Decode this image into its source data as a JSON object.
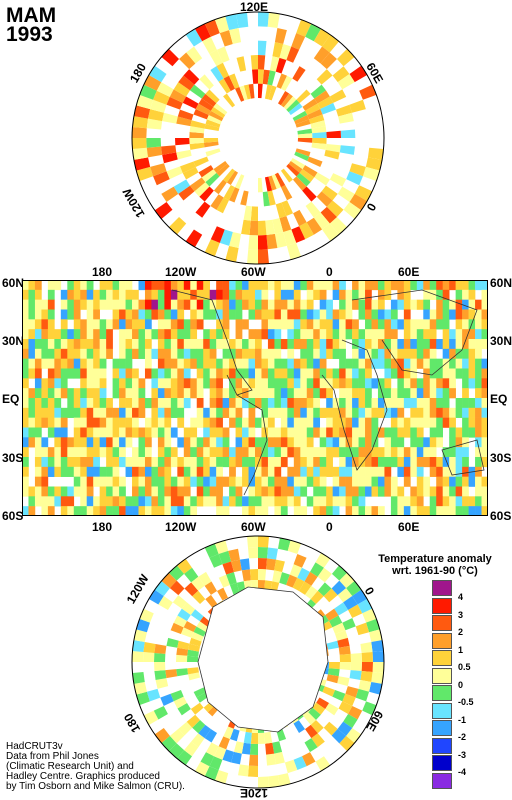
{
  "title": {
    "season": "MAM",
    "year": "1993"
  },
  "north_polar": {
    "labels": {
      "top": "120E",
      "left": "180",
      "right": "60E",
      "lower_left": "120W",
      "lower_right": "0"
    }
  },
  "world_map": {
    "lat_labels": [
      "60N",
      "30N",
      "EQ",
      "30S",
      "60S"
    ],
    "lon_labels": [
      "180",
      "120W",
      "60W",
      "0",
      "60E"
    ]
  },
  "south_polar": {
    "labels": {
      "upper_left": "120W",
      "upper_right": "0",
      "lower_left": "180",
      "lower_right": "60E",
      "bottom": "120E"
    }
  },
  "legend": {
    "title_line1": "Temperature anomaly",
    "title_line2": "wrt. 1961-90  (°C)",
    "levels": [
      {
        "label": "4",
        "color": "#a0168c"
      },
      {
        "label": "3",
        "color": "#ff1a00"
      },
      {
        "label": "2",
        "color": "#ff5a10"
      },
      {
        "label": "1",
        "color": "#ff9f2a"
      },
      {
        "label": "0.5",
        "color": "#ffd23a"
      },
      {
        "label": "0",
        "color": "#ffff99"
      },
      {
        "label": "-0.5",
        "color": "#61e86a"
      },
      {
        "label": "-1",
        "color": "#68e4ff"
      },
      {
        "label": "-2",
        "color": "#36a4ff"
      },
      {
        "label": "-3",
        "color": "#2046ff"
      },
      {
        "label": "-4",
        "color": "#0000cc"
      },
      {
        "label": "",
        "color": "#8a2be2"
      }
    ]
  },
  "credits": [
    "HadCRUT3v",
    "Data from Phil Jones",
    "(Climatic Research Unit) and",
    "Hadley Centre.  Graphics produced",
    "by Tim Osborn and Mike Salmon (CRU)."
  ]
}
